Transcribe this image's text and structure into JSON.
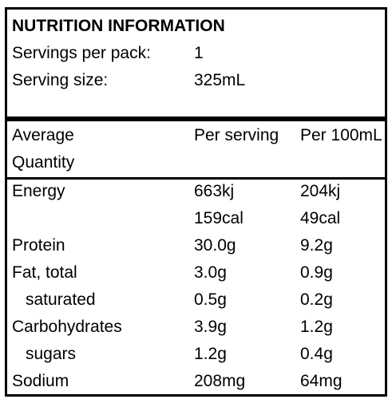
{
  "title": "NUTRITION INFORMATION",
  "servings_per_pack": {
    "label": "Servings per pack:",
    "value": "1"
  },
  "serving_size": {
    "label": "Serving size:",
    "value": "325mL"
  },
  "columns": {
    "quantity_line1": "Average",
    "quantity_line2": "Quantity",
    "per_serving": "Per serving",
    "per_100ml": "Per 100mL"
  },
  "rows": [
    {
      "name": "Energy",
      "per_serving": "663kj",
      "per_100ml": "204kj"
    },
    {
      "name": "",
      "per_serving": "159cal",
      "per_100ml": "49cal"
    },
    {
      "name": "Protein",
      "per_serving": "30.0g",
      "per_100ml": "9.2g"
    },
    {
      "name": "Fat, total",
      "per_serving": "3.0g",
      "per_100ml": "0.9g"
    },
    {
      "name": "saturated",
      "per_serving": "0.5g",
      "per_100ml": "0.2g"
    },
    {
      "name": "Carbohydrates",
      "per_serving": "3.9g",
      "per_100ml": "1.2g"
    },
    {
      "name": "sugars",
      "per_serving": "1.2g",
      "per_100ml": "0.4g"
    },
    {
      "name": "Sodium",
      "per_serving": "208mg",
      "per_100ml": "64mg"
    }
  ]
}
